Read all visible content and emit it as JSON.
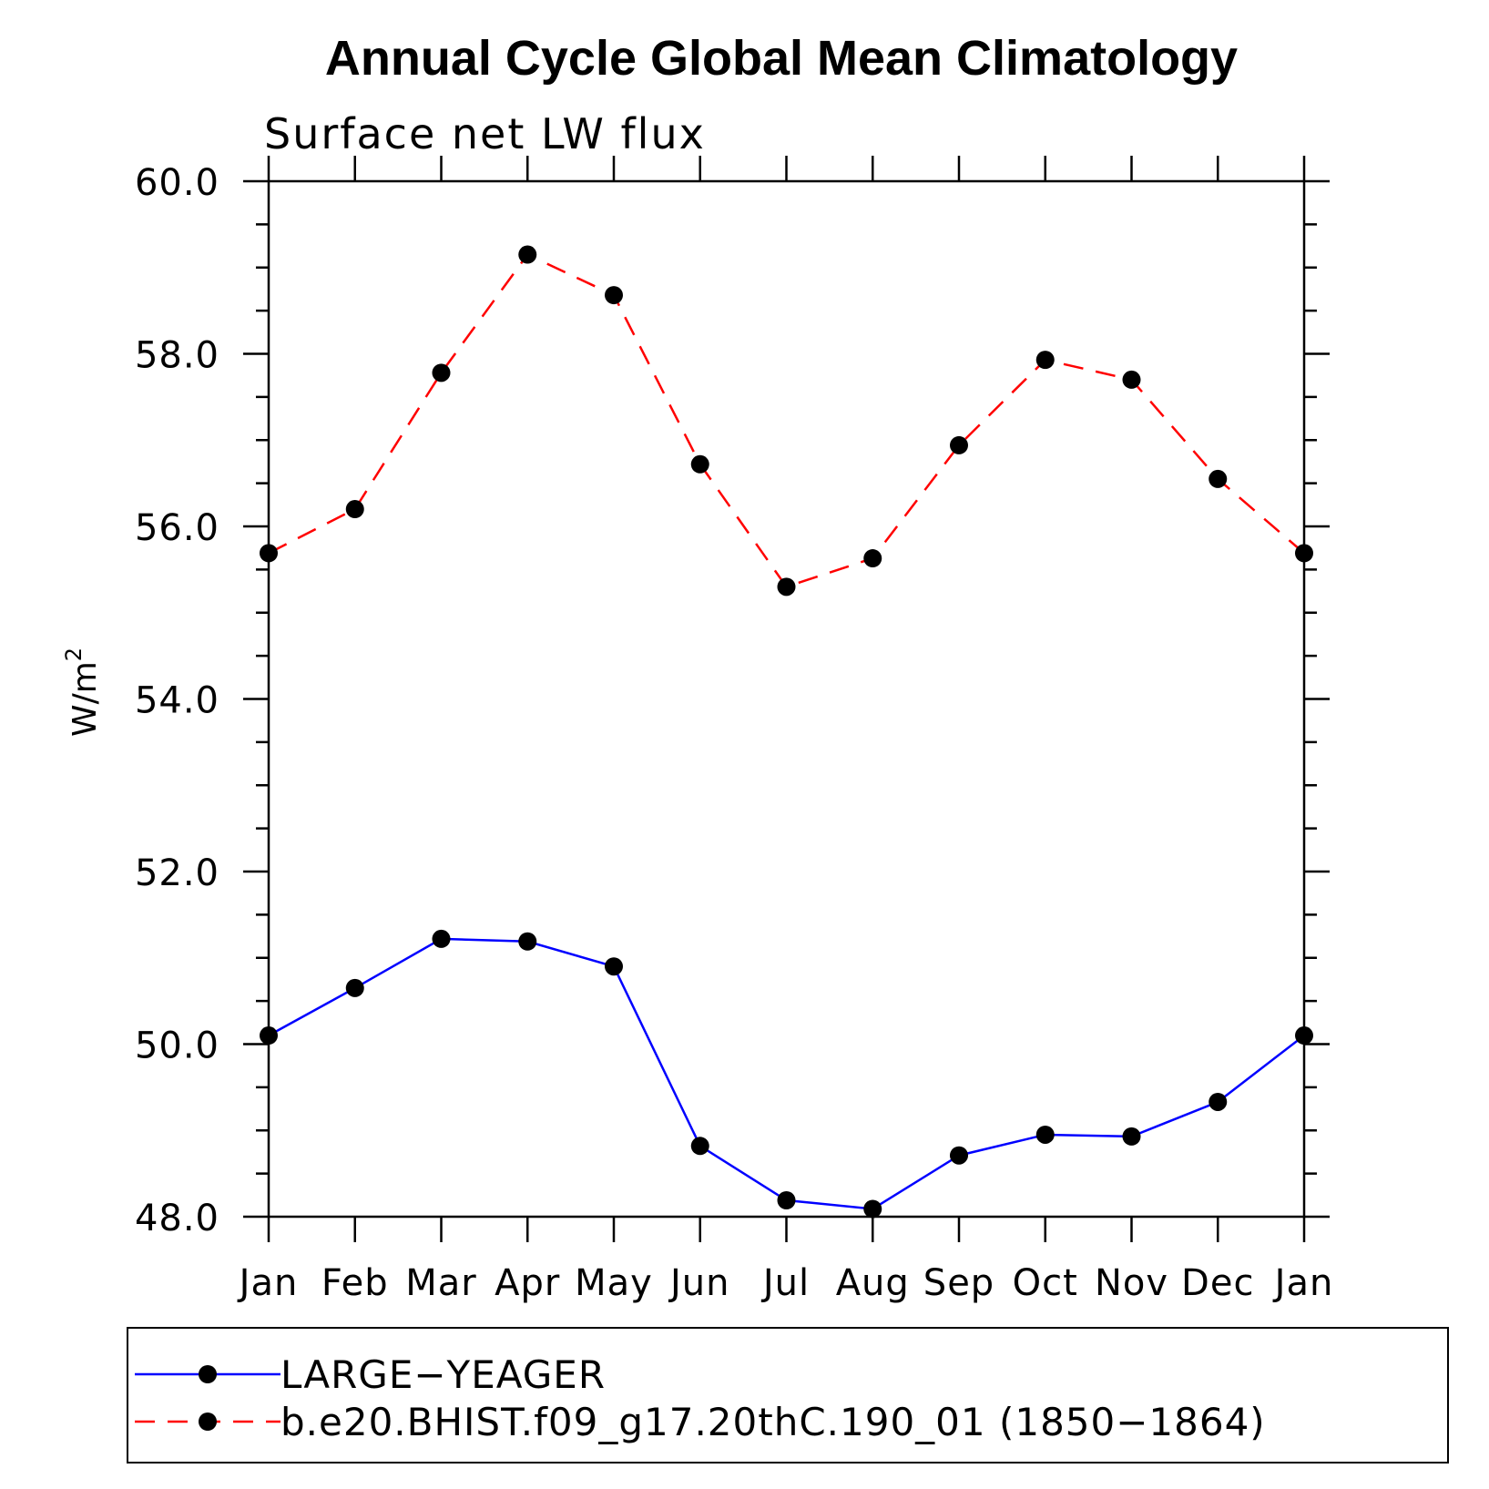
{
  "chart_data": {
    "type": "line",
    "title": "Annual Cycle Global Mean Climatology",
    "subtitle": "Surface net LW flux",
    "xlabel": "",
    "ylabel": "W/m",
    "ylabel_superscript": "2",
    "categories": [
      "Jan",
      "Feb",
      "Mar",
      "Apr",
      "May",
      "Jun",
      "Jul",
      "Aug",
      "Sep",
      "Oct",
      "Nov",
      "Dec",
      "Jan"
    ],
    "ylim": [
      48.0,
      60.0
    ],
    "y_major_ticks": [
      48.0,
      50.0,
      52.0,
      54.0,
      56.0,
      58.0,
      60.0
    ],
    "y_tick_labels": [
      "48.0",
      "50.0",
      "52.0",
      "54.0",
      "56.0",
      "58.0",
      "60.0"
    ],
    "y_minor_step": 0.5,
    "grid": false,
    "legend_position": "bottom",
    "series": [
      {
        "name": "LARGE−YEAGER",
        "color": "#0000ff",
        "line_style": "solid",
        "marker": "filled-circle",
        "values": [
          50.1,
          50.65,
          51.22,
          51.19,
          50.9,
          48.82,
          48.19,
          48.09,
          48.71,
          48.95,
          48.93,
          49.33,
          50.1
        ]
      },
      {
        "name": "b.e20.BHIST.f09_g17.20thC.190_01 (1850−1864)",
        "color": "#ff0000",
        "line_style": "dashed",
        "marker": "filled-circle",
        "values": [
          55.69,
          56.2,
          57.78,
          59.15,
          58.68,
          56.72,
          55.3,
          55.63,
          56.94,
          57.93,
          57.7,
          56.55,
          55.69
        ]
      }
    ]
  }
}
